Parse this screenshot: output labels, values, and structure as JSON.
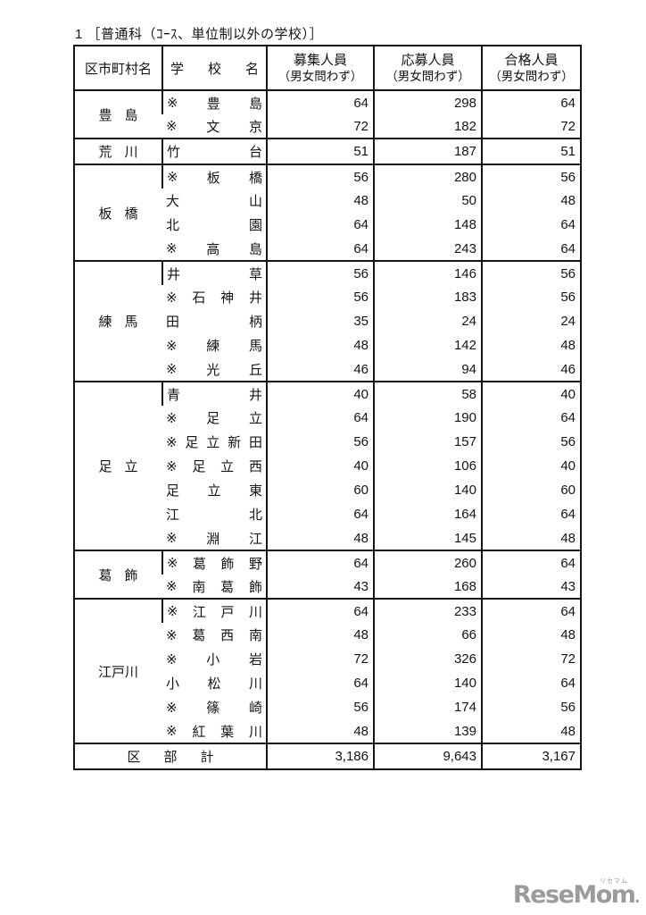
{
  "page": {
    "title": "1 ［普通科（ｺｰｽ、単位制以外の学校）］"
  },
  "table": {
    "mark_symbol": "※",
    "headers": {
      "district": "区市町村名",
      "school_chars": [
        "学",
        "校",
        "名"
      ],
      "columns": [
        {
          "line1": "募集人員",
          "line2": "（男女問わず）"
        },
        {
          "line1": "応募人員",
          "line2": "（男女問わず）"
        },
        {
          "line1": "合格人員",
          "line2": "（男女問わず）"
        }
      ]
    },
    "groups": [
      {
        "district": "豊島",
        "schools": [
          {
            "mark": true,
            "name": "豊島",
            "recruit": 64,
            "applicants": 298,
            "passed": 64
          },
          {
            "mark": true,
            "name": "文京",
            "recruit": 72,
            "applicants": 182,
            "passed": 72
          }
        ]
      },
      {
        "district": "荒川",
        "schools": [
          {
            "mark": false,
            "name": "竹台",
            "recruit": 51,
            "applicants": 187,
            "passed": 51
          }
        ]
      },
      {
        "district": "板橋",
        "schools": [
          {
            "mark": true,
            "name": "板橋",
            "recruit": 56,
            "applicants": 280,
            "passed": 56
          },
          {
            "mark": false,
            "name": "大山",
            "recruit": 48,
            "applicants": 50,
            "passed": 48
          },
          {
            "mark": false,
            "name": "北園",
            "recruit": 64,
            "applicants": 148,
            "passed": 64
          },
          {
            "mark": true,
            "name": "高島",
            "recruit": 64,
            "applicants": 243,
            "passed": 64
          }
        ]
      },
      {
        "district": "練馬",
        "schools": [
          {
            "mark": false,
            "name": "井草",
            "recruit": 56,
            "applicants": 146,
            "passed": 56
          },
          {
            "mark": true,
            "name": "石神井",
            "recruit": 56,
            "applicants": 183,
            "passed": 56
          },
          {
            "mark": false,
            "name": "田柄",
            "recruit": 35,
            "applicants": 24,
            "passed": 24
          },
          {
            "mark": true,
            "name": "練馬",
            "recruit": 48,
            "applicants": 142,
            "passed": 48
          },
          {
            "mark": true,
            "name": "光丘",
            "recruit": 46,
            "applicants": 94,
            "passed": 46
          }
        ]
      },
      {
        "district": "足立",
        "schools": [
          {
            "mark": false,
            "name": "青井",
            "recruit": 40,
            "applicants": 58,
            "passed": 40
          },
          {
            "mark": true,
            "name": "足立",
            "recruit": 64,
            "applicants": 190,
            "passed": 64
          },
          {
            "mark": true,
            "name": "足立新田",
            "recruit": 56,
            "applicants": 157,
            "passed": 56
          },
          {
            "mark": true,
            "name": "足立西",
            "recruit": 40,
            "applicants": 106,
            "passed": 40
          },
          {
            "mark": false,
            "name": "足立東",
            "recruit": 60,
            "applicants": 140,
            "passed": 60
          },
          {
            "mark": false,
            "name": "江北",
            "recruit": 64,
            "applicants": 164,
            "passed": 64
          },
          {
            "mark": true,
            "name": "淵江",
            "recruit": 48,
            "applicants": 145,
            "passed": 48
          }
        ]
      },
      {
        "district": "葛飾",
        "schools": [
          {
            "mark": true,
            "name": "葛飾野",
            "recruit": 64,
            "applicants": 260,
            "passed": 64
          },
          {
            "mark": true,
            "name": "南葛飾",
            "recruit": 43,
            "applicants": 168,
            "passed": 43
          }
        ]
      },
      {
        "district": "江戸川",
        "schools": [
          {
            "mark": true,
            "name": "江戸川",
            "recruit": 64,
            "applicants": 233,
            "passed": 64
          },
          {
            "mark": true,
            "name": "葛西南",
            "recruit": 48,
            "applicants": 66,
            "passed": 48
          },
          {
            "mark": true,
            "name": "小岩",
            "recruit": 72,
            "applicants": 326,
            "passed": 72
          },
          {
            "mark": false,
            "name": "小松川",
            "recruit": 64,
            "applicants": 140,
            "passed": 64
          },
          {
            "mark": true,
            "name": "篠崎",
            "recruit": 56,
            "applicants": 174,
            "passed": 56
          },
          {
            "mark": true,
            "name": "紅葉川",
            "recruit": 48,
            "applicants": 139,
            "passed": 48
          }
        ]
      }
    ],
    "total": {
      "label_chars": [
        "区",
        "部",
        "計"
      ],
      "recruit": "3,186",
      "applicants": "9,643",
      "passed": "3,167"
    }
  },
  "footer": {
    "logo_text": "ReseMom",
    "logo_suffix": ".",
    "logo_ruby": "リセマム",
    "logo_color": "#9b9b9b",
    "text_color": "#141414"
  }
}
